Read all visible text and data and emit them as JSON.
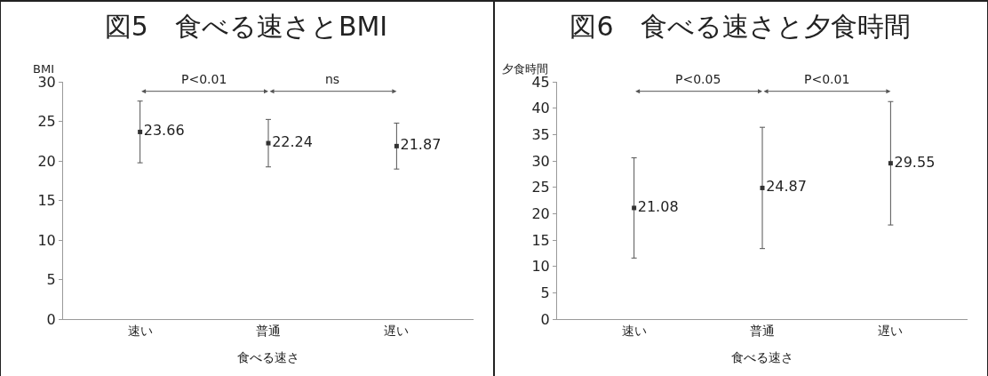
{
  "chart_data": [
    {
      "type": "scatter",
      "title": "図5　食べる速さとBMI",
      "xlabel": "食べる速さ",
      "ylabel": "BMI",
      "categories": [
        "速い",
        "普通",
        "遅い"
      ],
      "values": [
        23.66,
        22.24,
        21.87
      ],
      "errors": [
        3.9,
        3.0,
        2.9
      ],
      "color": "#333333",
      "marker": "square",
      "data_labels": true,
      "ylim": [
        0,
        30
      ],
      "yticks": [
        0,
        5,
        10,
        15,
        20,
        25,
        30
      ],
      "grid": false,
      "legend": false,
      "annotations": [
        "P<0.01",
        "ns"
      ]
    },
    {
      "type": "scatter",
      "title": "図6　食べる速さと夕食時間",
      "xlabel": "食べる速さ",
      "ylabel": "夕食時間",
      "categories": [
        "速い",
        "普通",
        "遅い"
      ],
      "values": [
        21.08,
        24.87,
        29.55
      ],
      "errors": [
        9.5,
        11.5,
        11.7
      ],
      "color": "#333333",
      "marker": "square",
      "data_labels": true,
      "ylim": [
        0,
        45
      ],
      "yticks": [
        0,
        5,
        10,
        15,
        20,
        25,
        30,
        35,
        40,
        45
      ],
      "grid": false,
      "legend": false,
      "annotations": [
        "P<0.05",
        "P<0.01"
      ]
    }
  ]
}
